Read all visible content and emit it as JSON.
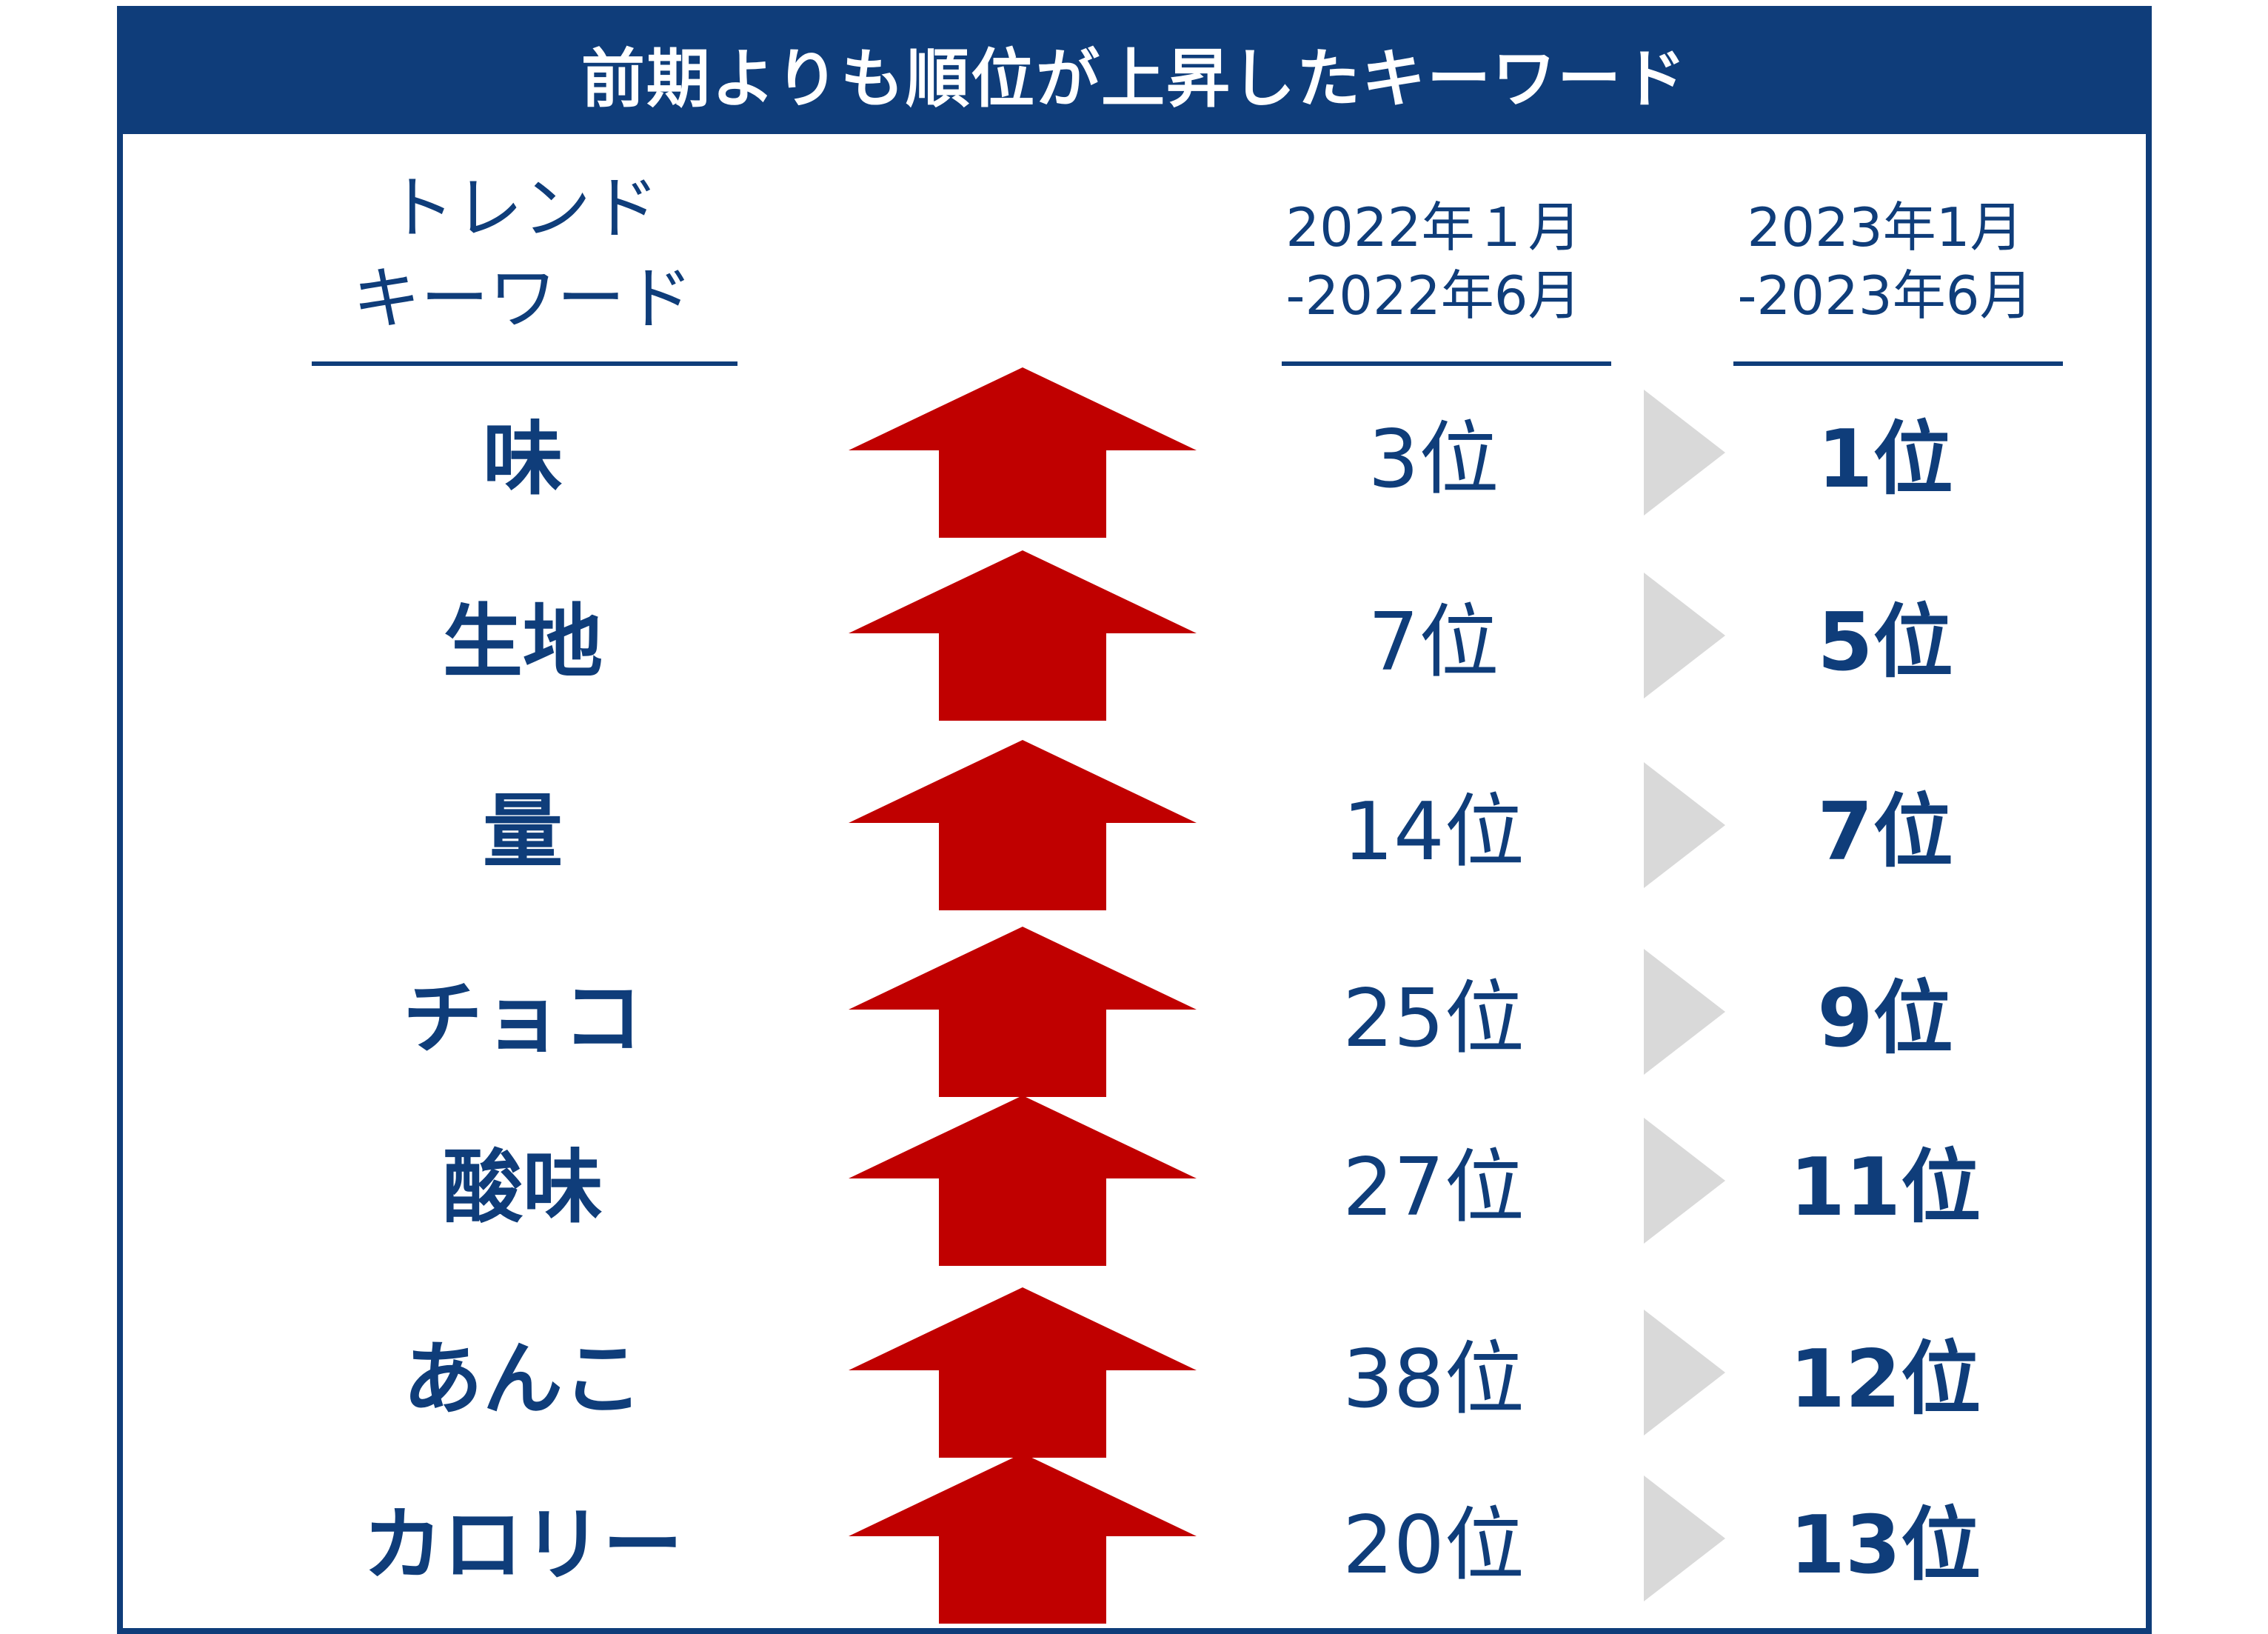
{
  "title": "前期よりも順位が上昇したキーワード",
  "headers": {
    "keyword_line1": "トレンド",
    "keyword_line2": "キーワード",
    "period1_line1": "2022年１月",
    "period1_line2": "-2022年6月",
    "period2_line1": "2023年1月",
    "period2_line2": "-2023年6月"
  },
  "rows": [
    {
      "keyword": "味",
      "prev_rank": "3位",
      "curr_rank": "1位"
    },
    {
      "keyword": "生地",
      "prev_rank": "7位",
      "curr_rank": "5位"
    },
    {
      "keyword": "量",
      "prev_rank": "14位",
      "curr_rank": "7位"
    },
    {
      "keyword": "チョコ",
      "prev_rank": "25位",
      "curr_rank": "9位"
    },
    {
      "keyword": "酸味",
      "prev_rank": "27位",
      "curr_rank": "11位"
    },
    {
      "keyword": "あんこ",
      "prev_rank": "38位",
      "curr_rank": "12位"
    },
    {
      "keyword": "カロリー",
      "prev_rank": "20位",
      "curr_rank": "13位"
    }
  ],
  "colors": {
    "navy": "#0f3d7a",
    "arrow_red": "#c00000",
    "triangle_gray": "#d9d9d9"
  },
  "icons": {
    "trend_arrow": "up-arrow-icon",
    "transition": "right-triangle-icon"
  }
}
